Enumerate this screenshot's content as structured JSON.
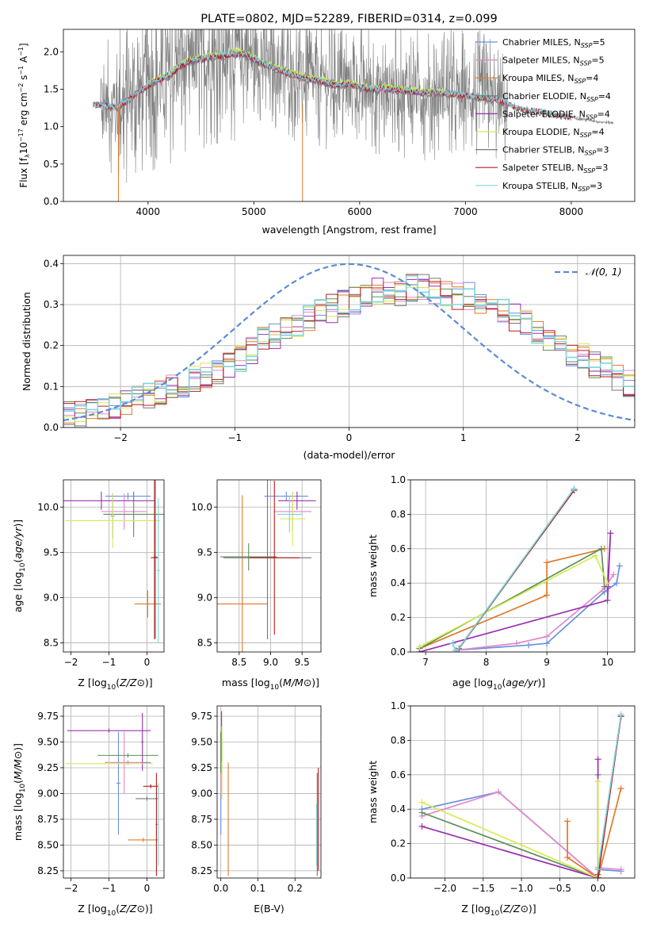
{
  "colors": {
    "Chabrier MILES": "#6a8fe0",
    "Salpeter MILES": "#e089c8",
    "Kroupa MILES": "#e07a2a",
    "Chabrier ELODIE": "#5b8f5b",
    "Salpeter ELODIE": "#9b30b0",
    "Kroupa ELODIE": "#d5ea55",
    "Chabrier STELIB": "#777777",
    "Salpeter STELIB": "#b81d1d",
    "Kroupa STELIB": "#7fd4dc",
    "gauss": "#5b8bd8",
    "spectrum_grey": "#808080"
  },
  "chart_data": [
    {
      "id": "spectrum",
      "type": "line",
      "title": "PLATE=0802, MJD=52289, FIBERID=0314, z=0.099",
      "xlabel": "wavelength [Angstrom, rest frame]",
      "ylabel": "Flux [f_λ 10^-17 erg cm^-2 s^-1 A^-1]",
      "ylabel_parts": [
        "Flux [f",
        "λ",
        "10",
        "−17",
        " erg cm",
        "−2",
        " s",
        "−1",
        " A",
        "−1",
        "]"
      ],
      "xlim": [
        3200,
        8600
      ],
      "ylim": [
        0,
        2.3
      ],
      "xticks": [
        4000,
        5000,
        6000,
        7000,
        8000
      ],
      "yticks": [
        0.0,
        0.5,
        1.0,
        1.5,
        2.0
      ],
      "xtick_labels": [
        "4000",
        "5000",
        "6000",
        "7000",
        "8000"
      ],
      "ytick_labels": [
        "0.0",
        "0.5",
        "1.0",
        "1.5",
        "2.0"
      ],
      "legend_position": "top-right",
      "legend": [
        {
          "name": "Chabrier MILES",
          "lib": "MILES",
          "nssp": "5"
        },
        {
          "name": "Salpeter MILES",
          "lib": "MILES",
          "nssp": "5"
        },
        {
          "name": "Kroupa MILES",
          "lib": "MILES",
          "nssp": "4"
        },
        {
          "name": "Chabrier ELODIE",
          "lib": "ELODIE",
          "nssp": "4"
        },
        {
          "name": "Salpeter ELODIE",
          "lib": "ELODIE",
          "nssp": "4"
        },
        {
          "name": "Kroupa ELODIE",
          "lib": "ELODIE",
          "nssp": "4"
        },
        {
          "name": "Chabrier STELIB",
          "lib": "STELIB",
          "nssp": "3"
        },
        {
          "name": "Salpeter STELIB",
          "lib": "STELIB",
          "nssp": "3"
        },
        {
          "name": "Kroupa STELIB",
          "lib": "STELIB",
          "nssp": "3"
        }
      ],
      "legend_sub": "SSP",
      "legend_sep": ", N",
      "continuum": {
        "x": [
          3480,
          3600,
          3700,
          3800,
          3900,
          4000,
          4100,
          4200,
          4300,
          4400,
          4500,
          4600,
          4700,
          4800,
          4900,
          5000,
          5100,
          5200,
          5300,
          5400,
          5500,
          5600,
          5700,
          5800,
          5900,
          6000,
          6100,
          6200,
          6300,
          6400,
          6500,
          6600,
          6700,
          6800,
          6900,
          7000,
          7100,
          7200,
          7300,
          7400,
          7500,
          7600,
          7700,
          7800,
          7900,
          8000,
          8100,
          8200,
          8300,
          8400
        ],
        "y": [
          1.3,
          1.28,
          1.25,
          1.35,
          1.45,
          1.55,
          1.62,
          1.68,
          1.8,
          1.88,
          1.9,
          1.93,
          1.95,
          1.97,
          1.98,
          1.9,
          1.83,
          1.78,
          1.72,
          1.68,
          1.63,
          1.62,
          1.58,
          1.55,
          1.57,
          1.53,
          1.5,
          1.5,
          1.5,
          1.48,
          1.47,
          1.45,
          1.45,
          1.45,
          1.43,
          1.42,
          1.4,
          1.38,
          1.36,
          1.3,
          1.25,
          1.22,
          1.2,
          1.17,
          1.15,
          1.13,
          1.1,
          1.08,
          1.06,
          1.05
        ]
      }
    },
    {
      "id": "residuals",
      "type": "histogram",
      "xlabel": "(data-model)/error",
      "ylabel": "Normed distribution",
      "xlim": [
        -2.5,
        2.5
      ],
      "ylim": [
        0,
        0.42
      ],
      "xticks": [
        -2,
        -1,
        0,
        1,
        2
      ],
      "yticks": [
        0.0,
        0.1,
        0.2,
        0.3,
        0.4
      ],
      "xtick_labels": [
        "−2",
        "−1",
        "0",
        "1",
        "2"
      ],
      "ytick_labels": [
        "0.0",
        "0.1",
        "0.2",
        "0.3",
        "0.4"
      ],
      "legend_position": "top-right",
      "legend_label": "𝒩(0, 1)",
      "bin_width": 0.1,
      "base_histogram": {
        "bin_left": -2.5,
        "values": [
          0.03,
          0.03,
          0.04,
          0.045,
          0.05,
          0.06,
          0.07,
          0.08,
          0.09,
          0.1,
          0.1,
          0.12,
          0.13,
          0.14,
          0.15,
          0.17,
          0.19,
          0.21,
          0.22,
          0.24,
          0.25,
          0.27,
          0.28,
          0.29,
          0.3,
          0.31,
          0.32,
          0.33,
          0.33,
          0.33,
          0.34,
          0.34,
          0.33,
          0.33,
          0.32,
          0.32,
          0.31,
          0.3,
          0.28,
          0.27,
          0.26,
          0.24,
          0.22,
          0.2,
          0.18,
          0.17,
          0.15,
          0.14,
          0.12,
          0.11,
          0.1
        ]
      }
    },
    {
      "id": "age_vs_Z",
      "type": "errorbar",
      "xlabel": "Z [log10(Z/Z⊙)]",
      "ylabel": "age [log10(age/yr)]",
      "xlim": [
        -2.2,
        0.45
      ],
      "ylim": [
        8.4,
        10.3
      ],
      "xticks": [
        -2,
        -1,
        0
      ],
      "yticks": [
        8.5,
        9.0,
        9.5,
        10.0
      ],
      "xtick_labels": [
        "−2",
        "−1",
        "0"
      ],
      "ytick_labels": [
        "8.5",
        "9.0",
        "9.5",
        "10.0"
      ],
      "points": [
        {
          "series": "Chabrier MILES",
          "x": -0.5,
          "xerr": 0.6,
          "y": 10.12,
          "yerr": 0.04
        },
        {
          "series": "Chabrier MILES",
          "x": -0.9,
          "xerr": 0.05,
          "y": 9.9,
          "yerr": 0.25
        },
        {
          "series": "Salpeter MILES",
          "x": -0.6,
          "xerr": 0.6,
          "y": 9.95,
          "yerr": 0.2
        },
        {
          "series": "Kroupa MILES",
          "x": 0.02,
          "xerr": 0.35,
          "y": 8.93,
          "yerr": 0.15
        },
        {
          "series": "Chabrier ELODIE",
          "x": -0.35,
          "xerr": 0.8,
          "y": 9.92,
          "yerr": 0.25
        },
        {
          "series": "Salpeter ELODIE",
          "x": -1.2,
          "xerr": 1.4,
          "y": 10.07,
          "yerr": 0.1
        },
        {
          "series": "Kroupa ELODIE",
          "x": -0.9,
          "xerr": 1.25,
          "y": 9.85,
          "yerr": 0.3
        },
        {
          "series": "Chabrier STELIB",
          "x": 0.22,
          "xerr": 0.05,
          "y": 9.45,
          "yerr": 0.9
        },
        {
          "series": "Salpeter STELIB",
          "x": 0.2,
          "xerr": 0.1,
          "y": 9.44,
          "yerr": 0.9
        },
        {
          "series": "Kroupa STELIB",
          "x": 0.3,
          "xerr": 0.04,
          "y": 9.3,
          "yerr": 0.8
        }
      ]
    },
    {
      "id": "age_vs_mass",
      "type": "errorbar",
      "xlabel": "mass [log10(M/M⊙)]",
      "ylabel": "",
      "xlim": [
        8.15,
        9.8
      ],
      "ylim": [
        8.4,
        10.3
      ],
      "xticks": [
        8.5,
        9.0,
        9.5
      ],
      "yticks": [
        8.5,
        9.0,
        9.5,
        10.0
      ],
      "xtick_labels": [
        "8.5",
        "9.0",
        "9.5"
      ],
      "ytick_labels": [
        "8.5",
        "9.0",
        "9.5",
        "10.0"
      ],
      "points": [
        {
          "series": "Chabrier MILES",
          "x": 9.25,
          "xerr": 0.35,
          "y": 10.12,
          "yerr": 0.05
        },
        {
          "series": "Salpeter MILES",
          "x": 9.35,
          "xerr": 0.3,
          "y": 9.95,
          "yerr": 0.22
        },
        {
          "series": "Kroupa MILES",
          "x": 8.55,
          "xerr": 0.4,
          "y": 8.93,
          "yerr": 1.2
        },
        {
          "series": "Chabrier ELODIE",
          "x": 8.65,
          "xerr": 0.45,
          "y": 9.45,
          "yerr": 0.15
        },
        {
          "series": "Salpeter ELODIE",
          "x": 9.42,
          "xerr": 0.3,
          "y": 10.07,
          "yerr": 0.1
        },
        {
          "series": "Kroupa ELODIE",
          "x": 9.35,
          "xerr": 0.2,
          "y": 9.87,
          "yerr": 0.3
        },
        {
          "series": "Chabrier STELIB",
          "x": 8.95,
          "xerr": 0.7,
          "y": 9.44,
          "yerr": 0.9
        },
        {
          "series": "Salpeter STELIB",
          "x": 9.06,
          "xerr": 0.4,
          "y": 9.44,
          "yerr": 0.85
        },
        {
          "series": "Kroupa STELIB",
          "x": 9.3,
          "xerr": 0.2,
          "y": 9.92,
          "yerr": 0.2
        }
      ]
    },
    {
      "id": "weight_vs_age",
      "type": "line",
      "xlabel": "age [log10(age/yr)]",
      "ylabel": "mass weight",
      "xlim": [
        6.75,
        10.45
      ],
      "ylim": [
        0,
        1.0
      ],
      "xticks": [
        7,
        8,
        9,
        10
      ],
      "yticks": [
        0.0,
        0.2,
        0.4,
        0.6,
        0.8,
        1.0
      ],
      "xtick_labels": [
        "7",
        "8",
        "9",
        "10"
      ],
      "ytick_labels": [
        "0.0",
        "0.2",
        "0.4",
        "0.6",
        "0.8",
        "1.0"
      ],
      "series": [
        {
          "name": "Chabrier MILES",
          "x": [
            7.5,
            8.7,
            9.0,
            9.95,
            10.15,
            10.2
          ],
          "y": [
            0.01,
            0.04,
            0.05,
            0.35,
            0.4,
            0.5
          ]
        },
        {
          "name": "Salpeter MILES",
          "x": [
            7.5,
            8.5,
            9.0,
            9.95,
            10.1
          ],
          "y": [
            0.01,
            0.05,
            0.09,
            0.37,
            0.45
          ]
        },
        {
          "name": "Kroupa MILES",
          "x": [
            6.9,
            9.0,
            9.0,
            9.95
          ],
          "y": [
            0.02,
            0.33,
            0.52,
            0.6
          ]
        },
        {
          "name": "Chabrier ELODIE",
          "x": [
            6.9,
            9.9,
            9.95
          ],
          "y": [
            0.02,
            0.6,
            0.38
          ]
        },
        {
          "name": "Salpeter ELODIE",
          "x": [
            6.9,
            10.0,
            10.05,
            10.0
          ],
          "y": [
            0.0,
            0.3,
            0.69,
            0.38
          ]
        },
        {
          "name": "Kroupa ELODIE",
          "x": [
            6.9,
            9.8,
            10.0
          ],
          "y": [
            0.03,
            0.56,
            0.4
          ]
        },
        {
          "name": "Chabrier STELIB",
          "x": [
            7.55,
            9.45
          ],
          "y": [
            0.02,
            0.94
          ]
        },
        {
          "name": "Salpeter STELIB",
          "x": [
            7.5,
            9.45
          ],
          "y": [
            0.0,
            0.94
          ]
        },
        {
          "name": "Kroupa STELIB",
          "x": [
            7.45,
            7.5,
            9.45
          ],
          "y": [
            0.05,
            0.0,
            0.95
          ]
        }
      ]
    },
    {
      "id": "mass_vs_Z",
      "type": "errorbar",
      "xlabel": "Z [log10(Z/Z⊙)]",
      "ylabel": "mass [log10(M/M⊙)]",
      "xlim": [
        -2.2,
        0.45
      ],
      "ylim": [
        8.18,
        9.85
      ],
      "xticks": [
        -2,
        -1,
        0
      ],
      "yticks": [
        8.25,
        8.5,
        8.75,
        9.0,
        9.25,
        9.5,
        9.75
      ],
      "xtick_labels": [
        "−2",
        "−1",
        "0"
      ],
      "ytick_labels": [
        "8.25",
        "8.50",
        "8.75",
        "9.00",
        "9.25",
        "9.50",
        "9.75"
      ],
      "points": [
        {
          "series": "Chabrier MILES",
          "x": -0.5,
          "xerr": 0.6,
          "y": 9.3,
          "yerr": 0.02
        },
        {
          "series": "Chabrier MILES",
          "x": -0.75,
          "xerr": 0.05,
          "y": 9.1,
          "yerr": 0.5
        },
        {
          "series": "Salpeter MILES",
          "x": -0.6,
          "xerr": 0.5,
          "y": 9.3,
          "yerr": 0.3
        },
        {
          "series": "Kroupa MILES",
          "x": -0.1,
          "xerr": 0.4,
          "y": 8.55,
          "yerr": 0.02
        },
        {
          "series": "Chabrier ELODIE",
          "x": -0.5,
          "xerr": 0.8,
          "y": 9.37,
          "yerr": 0.02
        },
        {
          "series": "Salpeter ELODIE",
          "x": -1.0,
          "xerr": 1.1,
          "y": 9.61,
          "yerr": 0.02
        },
        {
          "series": "Salpeter ELODIE",
          "x": -0.12,
          "xerr": 0.03,
          "y": 9.5,
          "yerr": 0.28
        },
        {
          "series": "Kroupa ELODIE",
          "x": -1.0,
          "xerr": 1.15,
          "y": 9.29,
          "yerr": 0.02
        },
        {
          "series": "Chabrier STELIB",
          "x": 0.0,
          "xerr": 0.3,
          "y": 8.95,
          "yerr": 0.02
        },
        {
          "series": "Salpeter STELIB",
          "x": 0.1,
          "xerr": 0.2,
          "y": 9.07,
          "yerr": 0.02
        },
        {
          "series": "Salpeter STELIB",
          "x": 0.25,
          "xerr": 0.02,
          "y": 8.7,
          "yerr": 0.5
        },
        {
          "series": "Kroupa STELIB",
          "x": 0.3,
          "xerr": 0.02,
          "y": 8.7,
          "yerr": 0.4
        }
      ]
    },
    {
      "id": "mass_vs_ebv",
      "type": "errorbar",
      "xlabel": "E(B-V)",
      "ylabel": "",
      "xlim": [
        -0.01,
        0.27
      ],
      "ylim": [
        8.18,
        9.85
      ],
      "xticks": [
        0.0,
        0.1,
        0.2
      ],
      "yticks": [
        8.25,
        8.5,
        8.75,
        9.0,
        9.25,
        9.5,
        9.75
      ],
      "xtick_labels": [
        "0.0",
        "0.1",
        "0.2"
      ],
      "ytick_labels": [
        "8.25",
        "8.50",
        "8.75",
        "9.00",
        "9.25",
        "9.50",
        "9.75"
      ],
      "points": [
        {
          "series": "Chabrier MILES",
          "x": 0.0,
          "xerr": 0.0,
          "y": 9.1,
          "yerr": 0.5
        },
        {
          "series": "Salpeter MILES",
          "x": 0.0,
          "xerr": 0.0,
          "y": 9.3,
          "yerr": 0.3
        },
        {
          "series": "Kroupa MILES",
          "x": 0.02,
          "xerr": 0.0,
          "y": 8.75,
          "yerr": 0.55
        },
        {
          "series": "Chabrier ELODIE",
          "x": 0.0,
          "xerr": 0.0,
          "y": 9.4,
          "yerr": 0.2
        },
        {
          "series": "Salpeter ELODIE",
          "x": 0.002,
          "xerr": 0.0,
          "y": 9.55,
          "yerr": 0.25
        },
        {
          "series": "Kroupa ELODIE",
          "x": 0.003,
          "xerr": 0.0,
          "y": 9.3,
          "yerr": 0.35
        },
        {
          "series": "Chabrier STELIB",
          "x": 0.26,
          "xerr": 0.0,
          "y": 8.7,
          "yerr": 0.5
        },
        {
          "series": "Salpeter STELIB",
          "x": 0.263,
          "xerr": 0.0,
          "y": 8.75,
          "yerr": 0.5
        },
        {
          "series": "Kroupa STELIB",
          "x": 0.258,
          "xerr": 0.0,
          "y": 8.6,
          "yerr": 0.3
        }
      ]
    },
    {
      "id": "weight_vs_Z",
      "type": "line",
      "xlabel": "Z [log10(Z/Z⊙)]",
      "ylabel": "mass weight",
      "xlim": [
        -2.45,
        0.48
      ],
      "ylim": [
        0,
        1.0
      ],
      "xticks": [
        -2.0,
        -1.5,
        -1.0,
        -0.5,
        0.0
      ],
      "yticks": [
        0.0,
        0.2,
        0.4,
        0.6,
        0.8,
        1.0
      ],
      "xtick_labels": [
        "−2.0",
        "−1.5",
        "−1.0",
        "−0.5",
        "0.0"
      ],
      "ytick_labels": [
        "0.0",
        "0.2",
        "0.4",
        "0.6",
        "0.8",
        "1.0"
      ],
      "series": [
        {
          "name": "Chabrier MILES",
          "x": [
            -2.3,
            -1.3,
            0.0,
            0.0,
            0.3
          ],
          "y": [
            0.4,
            0.5,
            0.0,
            0.05,
            0.04
          ]
        },
        {
          "name": "Salpeter MILES",
          "x": [
            -2.3,
            -1.3,
            0.0,
            0.0,
            0.3
          ],
          "y": [
            0.36,
            0.5,
            0.0,
            0.06,
            0.05
          ]
        },
        {
          "name": "Kroupa MILES",
          "x": [
            -0.4,
            -0.4,
            0.0,
            0.3
          ],
          "y": [
            0.33,
            0.12,
            0.0,
            0.52
          ]
        },
        {
          "name": "Chabrier ELODIE",
          "x": [
            -2.3,
            0.0,
            0.0
          ],
          "y": [
            0.38,
            0.0,
            0.6
          ]
        },
        {
          "name": "Salpeter ELODIE",
          "x": [
            -2.3,
            0.0,
            0.0
          ],
          "y": [
            0.3,
            0.0,
            0.69
          ]
        },
        {
          "name": "Kroupa ELODIE",
          "x": [
            -2.3,
            0.0,
            0.0
          ],
          "y": [
            0.44,
            0.0,
            0.56
          ]
        },
        {
          "name": "Chabrier STELIB",
          "x": [
            0.0,
            0.3
          ],
          "y": [
            0.02,
            0.94
          ]
        },
        {
          "name": "Salpeter STELIB",
          "x": [
            0.0,
            0.3
          ],
          "y": [
            0.0,
            0.94
          ]
        },
        {
          "name": "Kroupa STELIB",
          "x": [
            0.0,
            0.3
          ],
          "y": [
            0.05,
            0.95
          ]
        }
      ]
    }
  ]
}
